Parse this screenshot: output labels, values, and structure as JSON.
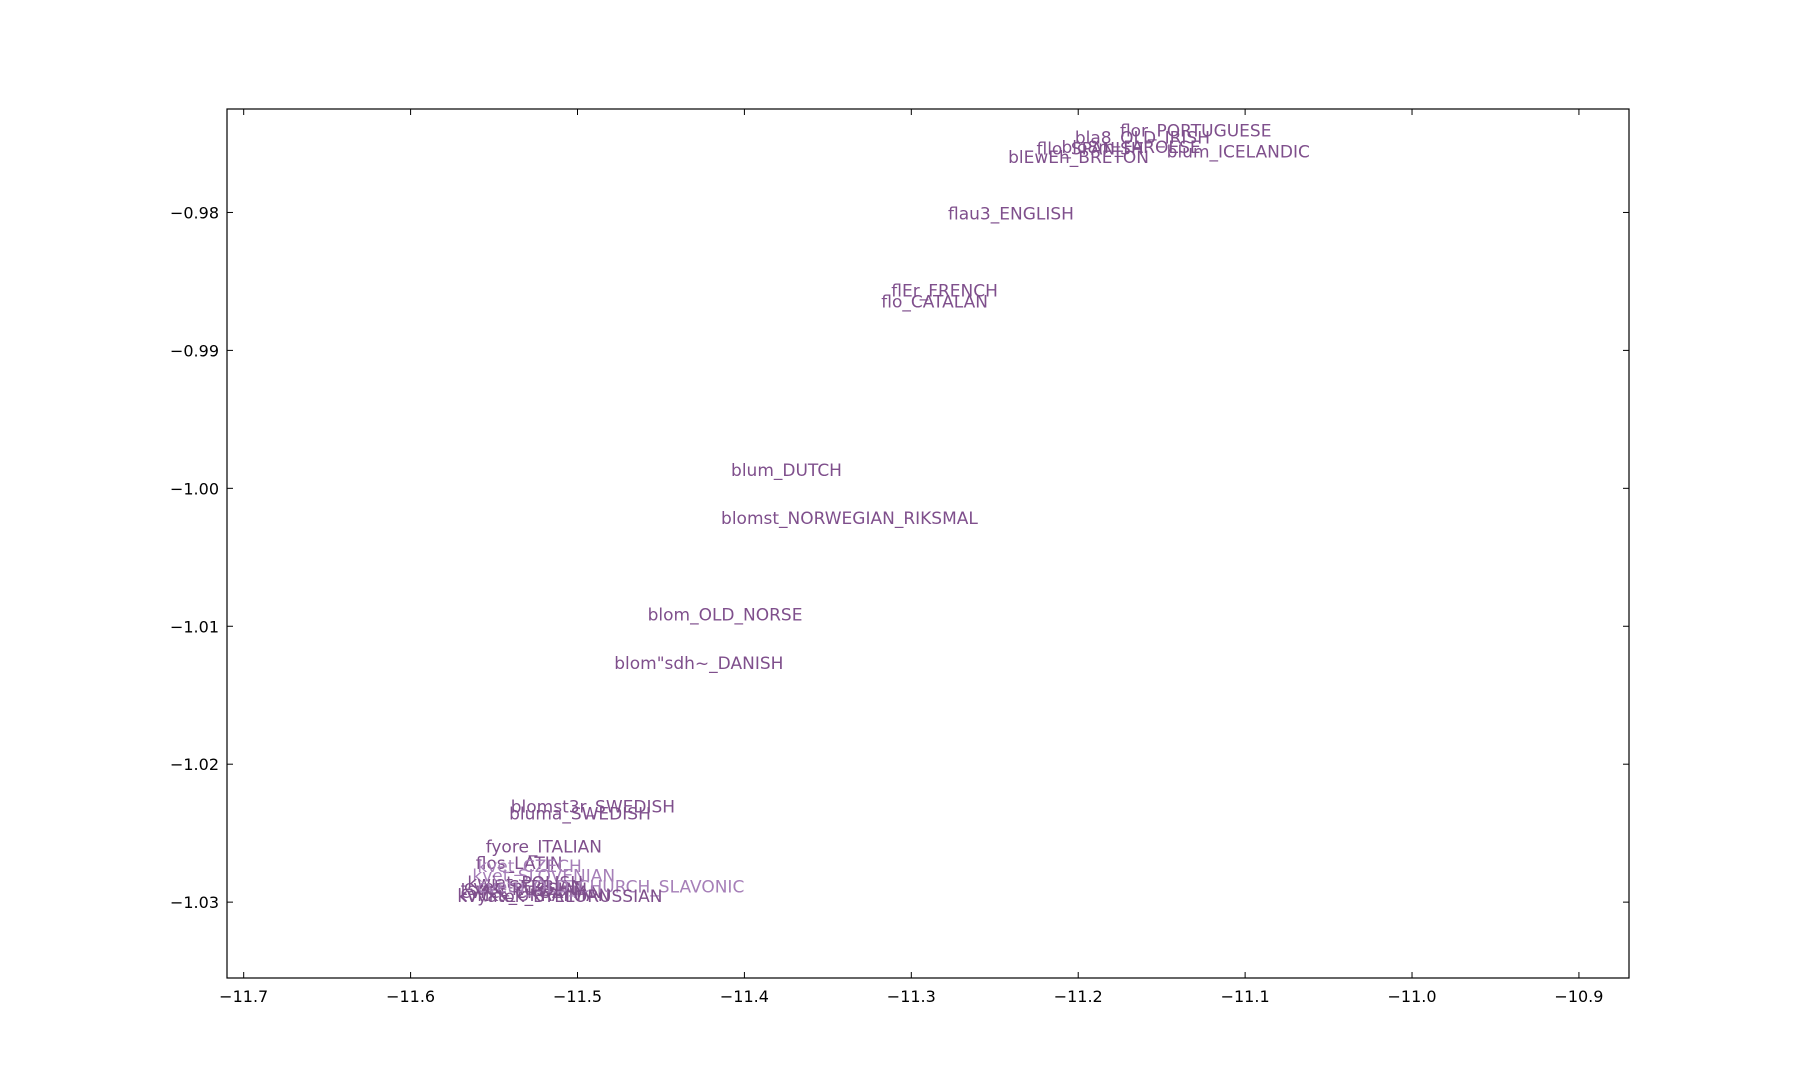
{
  "chart_data": {
    "type": "scatter",
    "title": "",
    "xlabel": "",
    "ylabel": "",
    "xlim": [
      -11.71,
      -10.87
    ],
    "ylim": [
      -1.0355,
      -0.9725
    ],
    "grid": false,
    "legend": "none",
    "x_ticks": [
      -11.7,
      -11.6,
      -11.5,
      -11.4,
      -11.3,
      -11.2,
      -11.1,
      -11.0,
      -10.9
    ],
    "x_tick_labels": [
      "−11.7",
      "−11.6",
      "−11.5",
      "−11.4",
      "−11.3",
      "−11.2",
      "−11.1",
      "−11.0",
      "−10.9"
    ],
    "y_ticks": [
      -0.98,
      -0.99,
      -1.0,
      -1.01,
      -1.02,
      -1.03
    ],
    "y_tick_labels": [
      "−0.98",
      "−0.99",
      "−1.00",
      "−1.01",
      "−1.02",
      "−1.03"
    ],
    "label_color": "#7f4f8c",
    "label_color_light": "#a67fb8",
    "points": [
      {
        "label": "flor_PORTUGUESE",
        "x": -11.175,
        "y": -0.9745
      },
      {
        "label": "bla8_OLD_IRISH",
        "x": -11.202,
        "y": -0.975
      },
      {
        "label": "fllo_SPANISH",
        "x": -11.225,
        "y": -0.9758
      },
      {
        "label": "blo8m_FAROESE",
        "x": -11.21,
        "y": -0.9757
      },
      {
        "label": "blum_ICELANDIC",
        "x": -11.147,
        "y": -0.976
      },
      {
        "label": "blEwEh_BRETON",
        "x": -11.242,
        "y": -0.9764
      },
      {
        "label": "flau3_ENGLISH",
        "x": -11.278,
        "y": -0.9805
      },
      {
        "label": "flEr_FRENCH",
        "x": -11.312,
        "y": -0.9861
      },
      {
        "label": "flo_CATALAN",
        "x": -11.318,
        "y": -0.9869
      },
      {
        "label": "blum_DUTCH",
        "x": -11.408,
        "y": -0.9991
      },
      {
        "label": "blomst_NORWEGIAN_RIKSMAL",
        "x": -11.414,
        "y": -1.0026
      },
      {
        "label": "blom_OLD_NORSE",
        "x": -11.458,
        "y": -1.0096
      },
      {
        "label": "blom\"sdh~_DANISH",
        "x": -11.478,
        "y": -1.0131
      },
      {
        "label": "blomst3r_SWEDISH",
        "x": -11.54,
        "y": -1.0235
      },
      {
        "label": "bluma_SWEDISH",
        "x": -11.541,
        "y": -1.024
      },
      {
        "label": "fyore_ITALIAN",
        "x": -11.555,
        "y": -1.0264
      },
      {
        "label": "flos_LATIN",
        "x": -11.561,
        "y": -1.0276
      },
      {
        "label": "kvet_CZECH",
        "x": -11.56,
        "y": -1.0278
      },
      {
        "label": "kvet_SLOVENIAN",
        "x": -11.563,
        "y": -1.0285
      },
      {
        "label": "kwiat_POLISH",
        "x": -11.566,
        "y": -1.029
      },
      {
        "label": "cvet_SERBIAN",
        "x": -11.568,
        "y": -1.0293
      },
      {
        "label": "tsvet_RUSSIAN",
        "x": -11.57,
        "y": -1.0295
      },
      {
        "label": "cvijet_CROATIAN",
        "x": -11.57,
        "y": -1.0297
      },
      {
        "label": "kvitka_UKRAINIAN",
        "x": -11.572,
        "y": -1.0299
      },
      {
        "label": "cvetu_OLD_CHURCH_SLAVONIC",
        "x": -11.56,
        "y": -1.0293
      },
      {
        "label": "kvyatok_BYELORUSSIAN",
        "x": -11.572,
        "y": -1.03
      }
    ]
  }
}
